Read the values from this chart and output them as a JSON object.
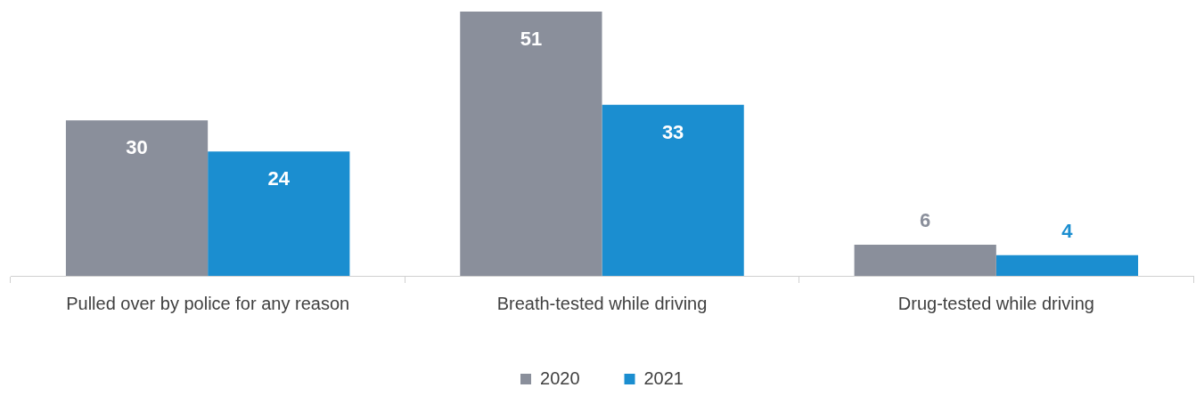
{
  "chart_data": {
    "type": "bar",
    "categories": [
      "Pulled over by police for any reason",
      "Breath-tested while driving",
      "Drug-tested while driving"
    ],
    "series": [
      {
        "name": "2020",
        "color": "#8a8f9b",
        "values": [
          30,
          51,
          6
        ]
      },
      {
        "name": "2021",
        "color": "#1b8ed0",
        "values": [
          24,
          33,
          4
        ]
      }
    ],
    "data_labels": true,
    "grid": false,
    "legend": "bottom"
  }
}
